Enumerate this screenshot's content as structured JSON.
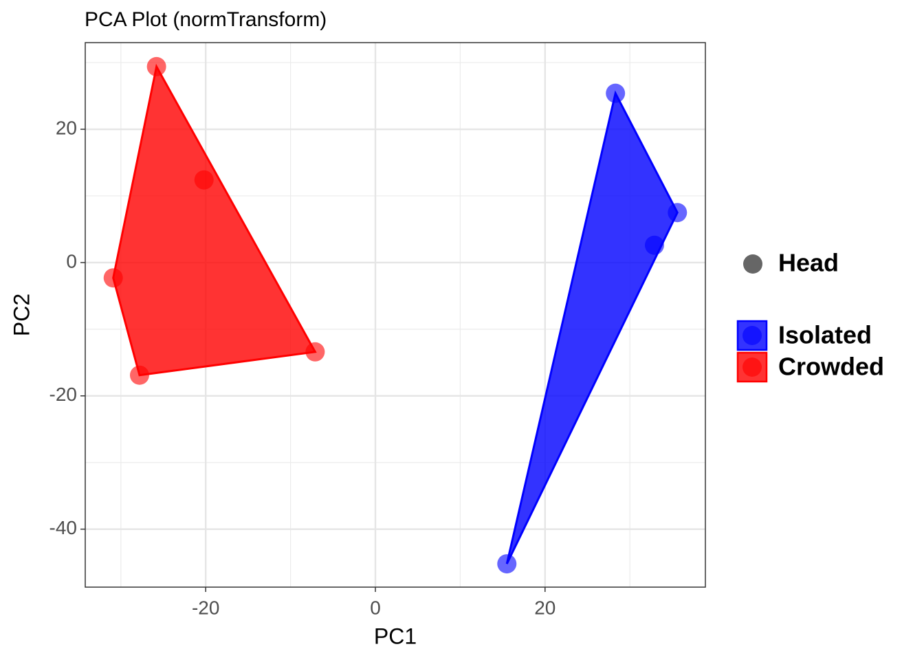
{
  "chart_data": {
    "type": "scatter",
    "title": "PCA Plot (normTransform)",
    "x_label": "PC1",
    "y_label": "PC2",
    "shape_legend_label": "Head",
    "xlim": [
      -34.2,
      38.9
    ],
    "xticks": [
      -20,
      0,
      20
    ],
    "ylim": [
      -48.7,
      33.0
    ],
    "yticks": [
      -40,
      -20,
      0,
      20
    ],
    "grid": true,
    "series": [
      {
        "name": "Isolated",
        "color": "#0000ff",
        "x": [
          28.3,
          35.6,
          32.9,
          15.5
        ],
        "values": [
          25.4,
          7.5,
          2.6,
          -45.2
        ]
      },
      {
        "name": "Crowded",
        "color": "#ff0000",
        "x": [
          -25.8,
          -20.2,
          -30.9,
          -27.8,
          -7.1
        ],
        "values": [
          29.4,
          12.4,
          -2.3,
          -16.9,
          -13.4
        ]
      }
    ]
  }
}
